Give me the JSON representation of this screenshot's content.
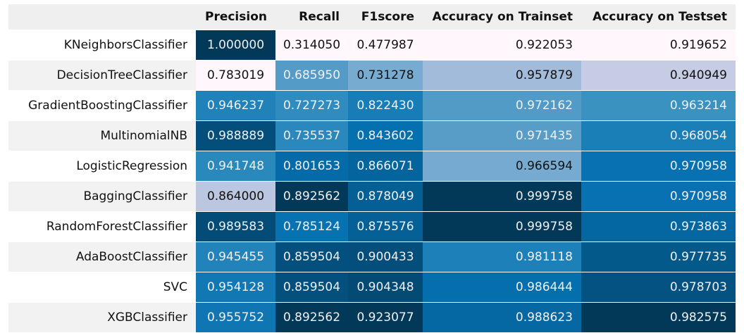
{
  "chart_data": {
    "type": "table",
    "columns": [
      "Precision",
      "Recall",
      "F1score",
      "Accuracy on Trainset",
      "Accuracy on Testset"
    ],
    "rows": [
      {
        "model": "KNeighborsClassifier",
        "values": [
          "1.000000",
          "0.314050",
          "0.477987",
          "0.922053",
          "0.919652"
        ]
      },
      {
        "model": "DecisionTreeClassifier",
        "values": [
          "0.783019",
          "0.685950",
          "0.731278",
          "0.957879",
          "0.940949"
        ]
      },
      {
        "model": "GradientBoostingClassifier",
        "values": [
          "0.946237",
          "0.727273",
          "0.822430",
          "0.972162",
          "0.963214"
        ]
      },
      {
        "model": "MultinomialNB",
        "values": [
          "0.988889",
          "0.735537",
          "0.843602",
          "0.971435",
          "0.968054"
        ]
      },
      {
        "model": "LogisticRegression",
        "values": [
          "0.941748",
          "0.801653",
          "0.866071",
          "0.966594",
          "0.970958"
        ]
      },
      {
        "model": "BaggingClassifier",
        "values": [
          "0.864000",
          "0.892562",
          "0.878049",
          "0.999758",
          "0.970958"
        ]
      },
      {
        "model": "RandomForestClassifier",
        "values": [
          "0.989583",
          "0.785124",
          "0.875576",
          "0.999758",
          "0.973863"
        ]
      },
      {
        "model": "AdaBoostClassifier",
        "values": [
          "0.945455",
          "0.859504",
          "0.900433",
          "0.981118",
          "0.977735"
        ]
      },
      {
        "model": "SVC",
        "values": [
          "0.954128",
          "0.859504",
          "0.904348",
          "0.986444",
          "0.978703"
        ]
      },
      {
        "model": "XGBClassifier",
        "values": [
          "0.955752",
          "0.892562",
          "0.923077",
          "0.988623",
          "0.982575"
        ]
      }
    ],
    "colormap": {
      "low": "#fff7fb",
      "mid": "#74a9cf",
      "high": "#023858"
    }
  }
}
